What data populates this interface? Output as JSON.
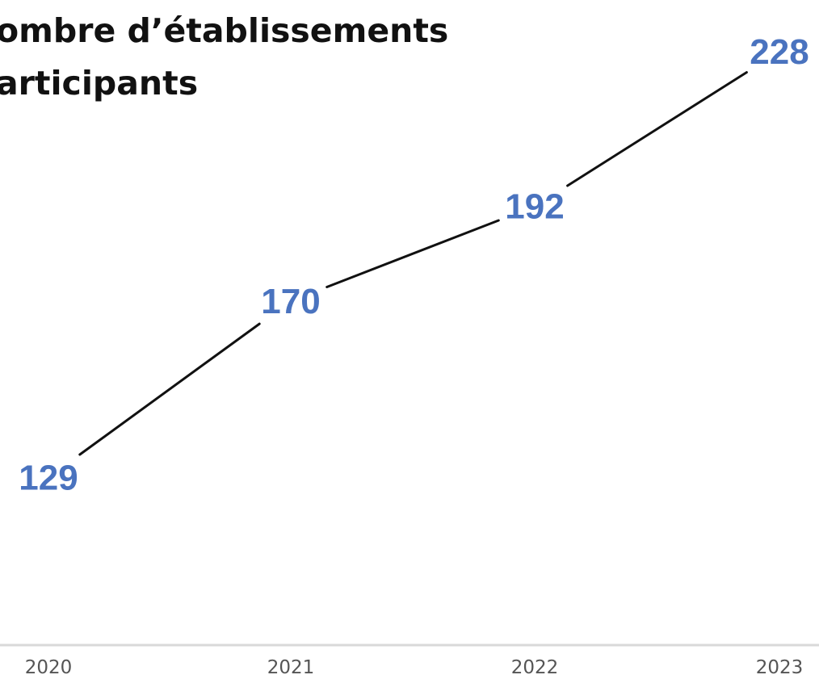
{
  "chart_data": {
    "type": "line",
    "title_lines": [
      "ombre d’établissements",
      "articipants"
    ],
    "categories": [
      "2020",
      "2021",
      "2022",
      "2023"
    ],
    "series": [
      {
        "values": [
          129,
          170,
          192,
          228
        ]
      }
    ],
    "data_labels": [
      "129",
      "170",
      "192",
      "228"
    ],
    "ylim": [
      90,
      240
    ],
    "grid": false,
    "colors": {
      "line": "#111111",
      "data_label": "#4a73bf",
      "axis": "#d9d9d9",
      "tick_label": "#555555",
      "title": "#111111"
    }
  }
}
